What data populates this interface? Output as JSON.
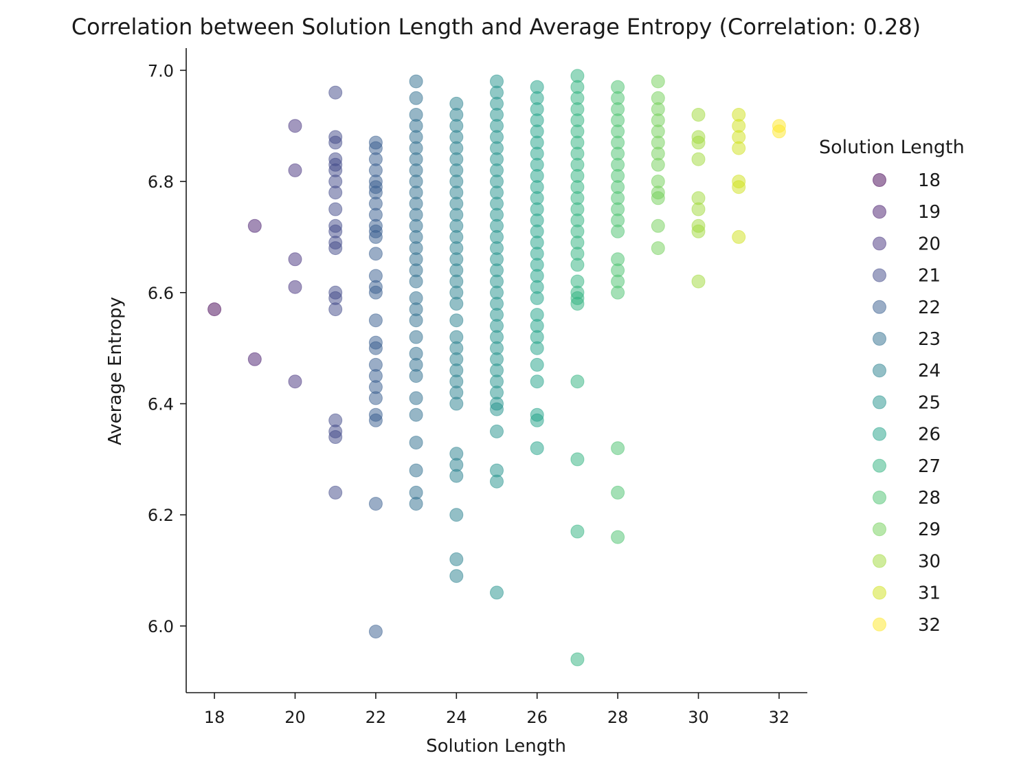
{
  "chart_data": {
    "type": "scatter",
    "title": "Correlation between Solution Length and Average Entropy (Correlation: 0.28)",
    "xlabel": "Solution Length",
    "ylabel": "Average Entropy",
    "xlim": [
      17.3,
      32.7
    ],
    "ylim": [
      5.88,
      7.04
    ],
    "xticks": [
      18,
      20,
      22,
      24,
      26,
      28,
      30,
      32
    ],
    "yticks": [
      6.0,
      6.2,
      6.4,
      6.6,
      6.8,
      7.0
    ],
    "xtick_labels": [
      "18",
      "20",
      "22",
      "24",
      "26",
      "28",
      "30",
      "32"
    ],
    "ytick_labels": [
      "6.0",
      "6.2",
      "6.4",
      "6.6",
      "6.8",
      "7.0"
    ],
    "grid": false,
    "legend": {
      "title": "Solution Length",
      "placement": "right",
      "entries": [
        "18",
        "19",
        "20",
        "21",
        "22",
        "23",
        "24",
        "25",
        "26",
        "27",
        "28",
        "29",
        "30",
        "31",
        "32"
      ]
    },
    "colors": {
      "18": "#440154",
      "19": "#481b6d",
      "20": "#46327e",
      "21": "#3f4788",
      "22": "#365c8d",
      "23": "#2e6e8e",
      "24": "#277f8e",
      "25": "#21918c",
      "26": "#1fa187",
      "27": "#2db27d",
      "28": "#4ac16d",
      "29": "#71cf57",
      "30": "#a0da39",
      "31": "#d0e11c",
      "32": "#fde725"
    },
    "series": [
      {
        "name": "18",
        "x": 18,
        "y": [
          6.57
        ]
      },
      {
        "name": "19",
        "x": 19,
        "y": [
          6.72,
          6.48
        ]
      },
      {
        "name": "20",
        "x": 20,
        "y": [
          6.9,
          6.82,
          6.66,
          6.61,
          6.44
        ]
      },
      {
        "name": "21",
        "x": 21,
        "y": [
          6.96,
          6.88,
          6.87,
          6.84,
          6.83,
          6.82,
          6.8,
          6.78,
          6.75,
          6.72,
          6.71,
          6.69,
          6.68,
          6.6,
          6.59,
          6.57,
          6.37,
          6.35,
          6.34,
          6.24
        ]
      },
      {
        "name": "22",
        "x": 22,
        "y": [
          6.87,
          6.86,
          6.84,
          6.82,
          6.8,
          6.79,
          6.78,
          6.76,
          6.74,
          6.72,
          6.71,
          6.7,
          6.67,
          6.63,
          6.61,
          6.6,
          6.55,
          6.51,
          6.5,
          6.47,
          6.45,
          6.43,
          6.41,
          6.38,
          6.37,
          6.22,
          5.99
        ]
      },
      {
        "name": "23",
        "x": 23,
        "y": [
          6.98,
          6.95,
          6.92,
          6.9,
          6.88,
          6.86,
          6.84,
          6.82,
          6.8,
          6.78,
          6.76,
          6.74,
          6.72,
          6.7,
          6.68,
          6.66,
          6.64,
          6.62,
          6.59,
          6.57,
          6.55,
          6.52,
          6.49,
          6.47,
          6.45,
          6.41,
          6.38,
          6.33,
          6.28,
          6.24,
          6.22
        ]
      },
      {
        "name": "24",
        "x": 24,
        "y": [
          6.94,
          6.92,
          6.9,
          6.88,
          6.86,
          6.84,
          6.82,
          6.8,
          6.78,
          6.76,
          6.74,
          6.72,
          6.7,
          6.68,
          6.66,
          6.64,
          6.62,
          6.6,
          6.58,
          6.55,
          6.52,
          6.5,
          6.48,
          6.46,
          6.44,
          6.42,
          6.4,
          6.31,
          6.29,
          6.27,
          6.2,
          6.12,
          6.09
        ]
      },
      {
        "name": "25",
        "x": 25,
        "y": [
          6.98,
          6.96,
          6.94,
          6.92,
          6.9,
          6.88,
          6.86,
          6.84,
          6.82,
          6.8,
          6.78,
          6.76,
          6.74,
          6.72,
          6.7,
          6.68,
          6.66,
          6.64,
          6.62,
          6.6,
          6.58,
          6.56,
          6.54,
          6.52,
          6.5,
          6.48,
          6.46,
          6.44,
          6.42,
          6.4,
          6.39,
          6.35,
          6.28,
          6.26,
          6.06
        ]
      },
      {
        "name": "26",
        "x": 26,
        "y": [
          6.97,
          6.95,
          6.93,
          6.91,
          6.89,
          6.87,
          6.85,
          6.83,
          6.81,
          6.79,
          6.77,
          6.75,
          6.73,
          6.71,
          6.69,
          6.67,
          6.65,
          6.63,
          6.61,
          6.59,
          6.56,
          6.54,
          6.52,
          6.5,
          6.47,
          6.44,
          6.38,
          6.37,
          6.32
        ]
      },
      {
        "name": "27",
        "x": 27,
        "y": [
          6.99,
          6.97,
          6.95,
          6.93,
          6.91,
          6.89,
          6.87,
          6.85,
          6.83,
          6.81,
          6.79,
          6.77,
          6.75,
          6.73,
          6.71,
          6.69,
          6.67,
          6.65,
          6.62,
          6.6,
          6.59,
          6.58,
          6.44,
          6.3,
          6.17,
          5.94
        ]
      },
      {
        "name": "28",
        "x": 28,
        "y": [
          6.97,
          6.95,
          6.93,
          6.91,
          6.89,
          6.87,
          6.85,
          6.83,
          6.81,
          6.79,
          6.77,
          6.75,
          6.73,
          6.71,
          6.66,
          6.64,
          6.62,
          6.6,
          6.32,
          6.24,
          6.16
        ]
      },
      {
        "name": "29",
        "x": 29,
        "y": [
          6.98,
          6.95,
          6.93,
          6.91,
          6.89,
          6.87,
          6.85,
          6.83,
          6.8,
          6.78,
          6.77,
          6.72,
          6.68
        ]
      },
      {
        "name": "30",
        "x": 30,
        "y": [
          6.92,
          6.88,
          6.87,
          6.84,
          6.77,
          6.75,
          6.72,
          6.71,
          6.62
        ]
      },
      {
        "name": "31",
        "x": 31,
        "y": [
          6.92,
          6.9,
          6.88,
          6.86,
          6.8,
          6.79,
          6.7
        ]
      },
      {
        "name": "32",
        "x": 32,
        "y": [
          6.9,
          6.89
        ]
      }
    ]
  }
}
